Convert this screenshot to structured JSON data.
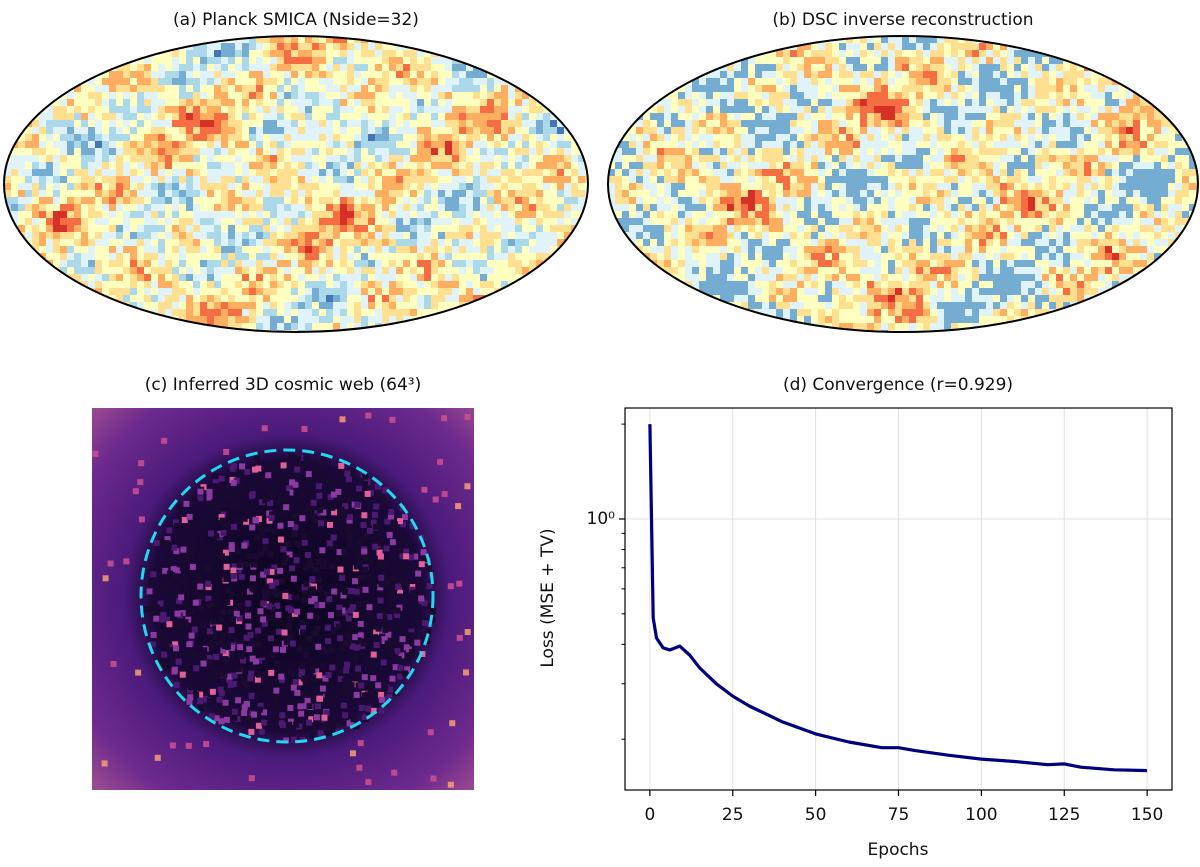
{
  "chart_data": [
    {
      "type": "map",
      "title": "(a) Planck SMICA (Nside=32)"
    },
    {
      "type": "map",
      "title": "(b) DSC inverse reconstruction"
    },
    {
      "type": "image",
      "title": "(c) Inferred 3D cosmic web (64³)"
    },
    {
      "type": "line",
      "title": "(d) Convergence (r=0.929)",
      "x_label": "Epochs",
      "y_label": "Loss (MSE + TV)",
      "x": [
        0,
        1,
        2,
        4,
        6,
        9,
        12,
        15,
        20,
        25,
        30,
        40,
        50,
        60,
        70,
        75,
        80,
        90,
        100,
        110,
        120,
        125,
        130,
        140,
        150
      ],
      "values": [
        2.0,
        0.485,
        0.419,
        0.39,
        0.384,
        0.395,
        0.37,
        0.337,
        0.3,
        0.274,
        0.255,
        0.227,
        0.208,
        0.196,
        0.188,
        0.188,
        0.184,
        0.178,
        0.173,
        0.17,
        0.166,
        0.167,
        0.163,
        0.16,
        0.159
      ],
      "color": "#00007f",
      "xlim": [
        -7.5,
        157.5
      ],
      "xticks": [
        0,
        25,
        50,
        75,
        100,
        125,
        150
      ],
      "ylim": [
        0.138,
        2.25
      ],
      "y_log": true,
      "yticks": [
        {
          "value": 1,
          "label": "10⁰"
        }
      ],
      "yminor_ticks": [
        0.2,
        0.3,
        0.4,
        0.5,
        0.6,
        0.7,
        0.8,
        0.9,
        2
      ],
      "grid": true
    }
  ]
}
